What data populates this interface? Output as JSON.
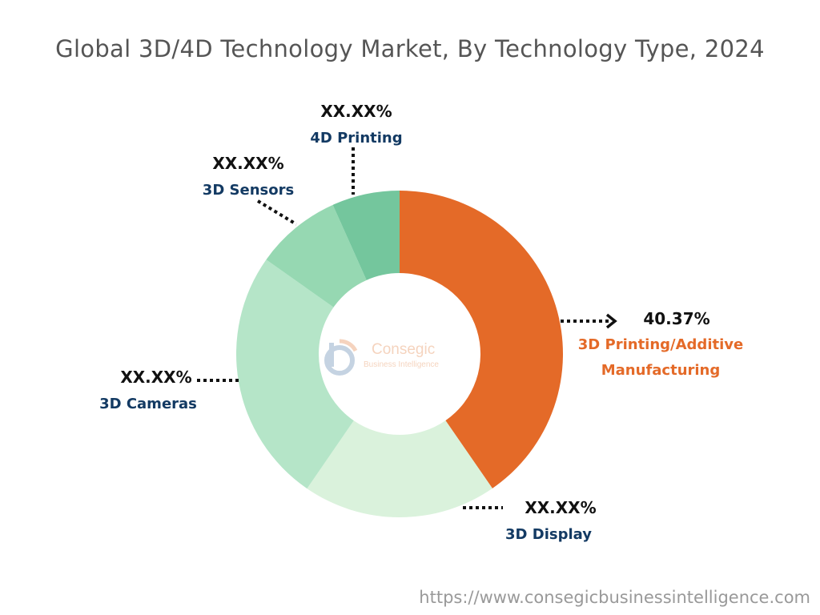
{
  "chart_data": {
    "type": "pie",
    "variant": "donut",
    "title": "Global 3D/4D Technology Market, By Technology Type, 2024",
    "categories": [
      "3D Printing/Additive Manufacturing",
      "3D Display",
      "3D Cameras",
      "3D Sensors",
      "4D Printing"
    ],
    "values": [
      40.37,
      19.2,
      25.2,
      8.5,
      6.7
    ],
    "data_labels": [
      "40.37%",
      "XX.XX%",
      "XX.XX%",
      "XX.XX%",
      "XX.XX%"
    ],
    "colors": [
      "#E46A28",
      "#DAF2DC",
      "#B5E5C8",
      "#96D8B2",
      "#74C69D"
    ],
    "start": "12 o'clock, clockwise",
    "label_colors": {
      "highlight": "#E46A28",
      "default": "#133A63"
    }
  },
  "logo": {
    "name": "Consegic",
    "tagline": "Business Intelligence"
  },
  "footer": {
    "url": "https://www.consegicbusinessintelligence.com"
  }
}
